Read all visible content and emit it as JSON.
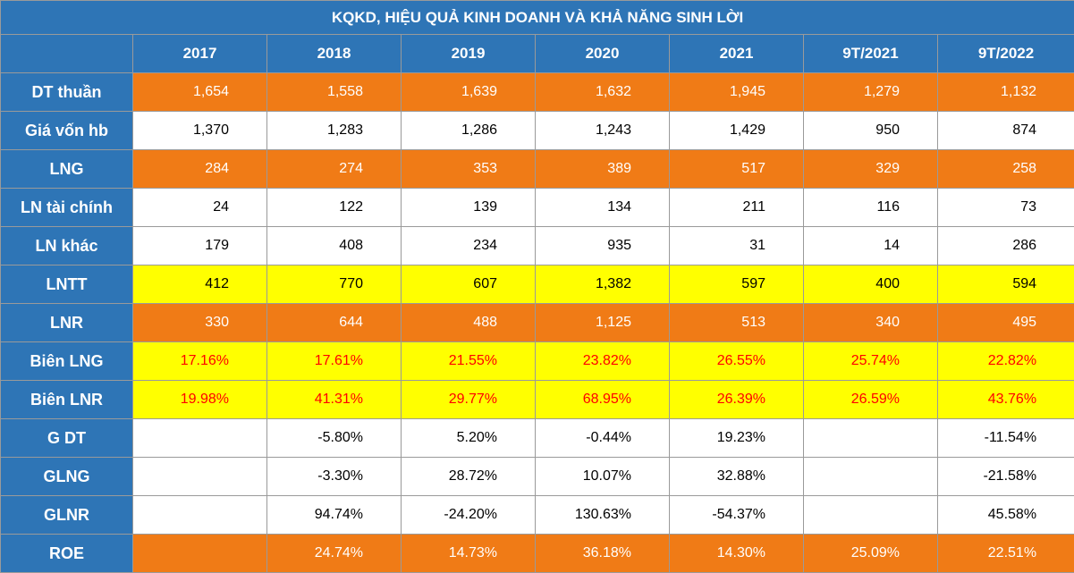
{
  "title": "KQKD, HIỆU QUẢ KINH DOANH VÀ KHẢ NĂNG SINH LỜI",
  "columns": [
    "",
    "2017",
    "2018",
    "2019",
    "2020",
    "2021",
    "9T/2021",
    "9T/2022"
  ],
  "row_styles": {
    "orange": "#f07b16",
    "white": "#ffffff",
    "yellow": "#ffff00",
    "header_blue": "#2e75b6",
    "red_text": "#ff0000"
  },
  "rows": [
    {
      "label": "DT thuần",
      "style": "orange",
      "values": [
        "1,654",
        "1,558",
        "1,639",
        "1,632",
        "1,945",
        "1,279",
        "1,132"
      ]
    },
    {
      "label": "Giá vốn hb",
      "style": "white",
      "values": [
        "1,370",
        "1,283",
        "1,286",
        "1,243",
        "1,429",
        "950",
        "874"
      ]
    },
    {
      "label": "LNG",
      "style": "orange",
      "values": [
        "284",
        "274",
        "353",
        "389",
        "517",
        "329",
        "258"
      ]
    },
    {
      "label": "LN tài chính",
      "style": "white",
      "values": [
        "24",
        "122",
        "139",
        "134",
        "211",
        "116",
        "73"
      ]
    },
    {
      "label": "LN khác",
      "style": "white",
      "values": [
        "179",
        "408",
        "234",
        "935",
        "31",
        "14",
        "286"
      ]
    },
    {
      "label": "LNTT",
      "style": "yellow",
      "values": [
        "412",
        "770",
        "607",
        "1,382",
        "597",
        "400",
        "594"
      ]
    },
    {
      "label": "LNR",
      "style": "orange",
      "values": [
        "330",
        "644",
        "488",
        "1,125",
        "513",
        "340",
        "495"
      ]
    },
    {
      "label": "Biên LNG",
      "style": "yellow-red",
      "values": [
        "17.16%",
        "17.61%",
        "21.55%",
        "23.82%",
        "26.55%",
        "25.74%",
        "22.82%"
      ]
    },
    {
      "label": "Biên LNR",
      "style": "yellow-red",
      "values": [
        "19.98%",
        "41.31%",
        "29.77%",
        "68.95%",
        "26.39%",
        "26.59%",
        "43.76%"
      ]
    },
    {
      "label": "G DT",
      "style": "white",
      "values": [
        "",
        "-5.80%",
        "5.20%",
        "-0.44%",
        "19.23%",
        "",
        "-11.54%"
      ]
    },
    {
      "label": "GLNG",
      "style": "white",
      "values": [
        "",
        "-3.30%",
        "28.72%",
        "10.07%",
        "32.88%",
        "",
        "-21.58%"
      ]
    },
    {
      "label": "GLNR",
      "style": "white",
      "values": [
        "",
        "94.74%",
        "-24.20%",
        "130.63%",
        "-54.37%",
        "",
        "45.58%"
      ]
    },
    {
      "label": "ROE",
      "style": "orange",
      "values": [
        "",
        "24.74%",
        "14.73%",
        "36.18%",
        "14.30%",
        "25.09%",
        "22.51%"
      ]
    }
  ]
}
